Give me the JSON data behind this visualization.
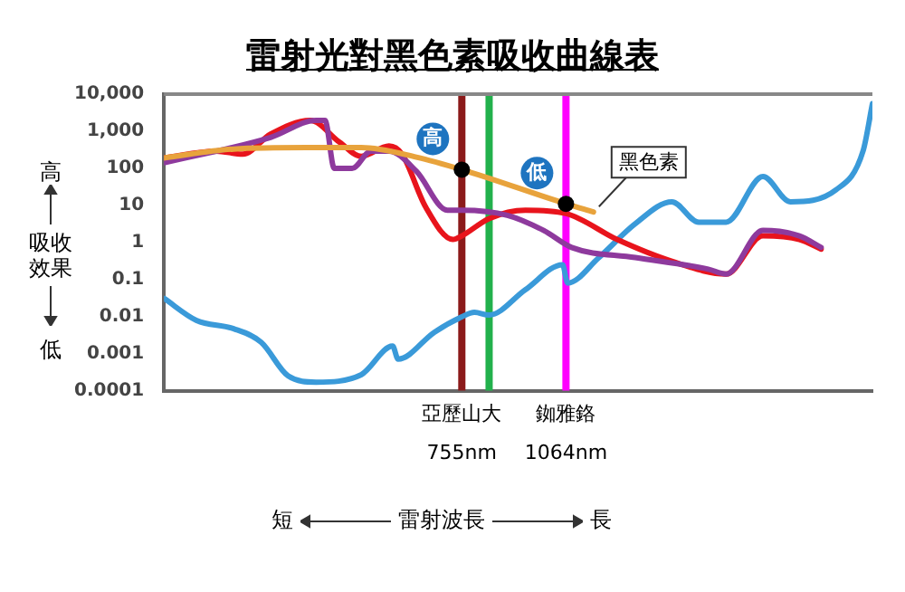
{
  "chart_data": {
    "type": "line",
    "title": "雷射光對黑色素吸收曲線表",
    "xlabel": "雷射波長",
    "ylabel": "吸收效果",
    "annotations": [
      "高",
      "低",
      {
        "text": "高",
        "x": 755,
        "y": 92
      },
      {
        "text": "低",
        "x": 1064,
        "y": 11
      },
      "短",
      "長"
    ],
    "log": "xy",
    "xlim": [
      283,
      2920
    ],
    "xticks": [
      {
        "value": 755,
        "label": "755nm"
      },
      {
        "value": 1064,
        "label": "1064nm"
      }
    ],
    "ylim": [
      0.0001,
      10000
    ],
    "yticks": [
      {
        "value": 0.0001,
        "label": "0.0001"
      },
      {
        "value": 0.001,
        "label": "0.001"
      },
      {
        "value": 0.01,
        "label": "0.01"
      },
      {
        "value": 0.1,
        "label": "0.1"
      },
      {
        "value": 1,
        "label": "1"
      },
      {
        "value": 10,
        "label": "10"
      },
      {
        "value": 100,
        "label": "100"
      },
      {
        "value": 1000,
        "label": "1,000"
      },
      {
        "value": 10000,
        "label": "10,000"
      }
    ],
    "grid": false,
    "legend": false,
    "marker": "none",
    "line_style": "solid",
    "ref_lines": [
      {
        "axis": "x",
        "value": 755,
        "label": "亞歷山大",
        "color": "#8b1a1a"
      },
      {
        "axis": "x",
        "value": 826,
        "color": "#22b14c"
      },
      {
        "axis": "x",
        "value": 1064,
        "label": "銣雅鉻",
        "color": "#ff00ff"
      }
    ],
    "series": [
      {
        "name": "黑色素",
        "color": "#e8a33c",
        "x": [
          283,
          356,
          453,
          542,
          650,
          755,
          1064,
          1165
        ],
        "values": [
          190,
          330,
          360,
          360,
          200,
          92,
          11,
          6.6
        ]
      },
      {
        "color": "#8e3a9d",
        "x": [
          283,
          402,
          467,
          481,
          496,
          526,
          560,
          594,
          650,
          720,
          755,
          877,
          989,
          1084,
          1337,
          1700,
          1803,
          2036,
          2296,
          2466
        ],
        "values": [
          140,
          680,
          1950,
          1950,
          100,
          100,
          290,
          290,
          83,
          7.4,
          7.4,
          5.4,
          2.1,
          0.73,
          0.39,
          0.19,
          0.14,
          2.1,
          1.5,
          0.73
        ]
      },
      {
        "color": "#e8141c",
        "x": [
          283,
          336,
          367,
          402,
          458,
          505,
          542,
          594,
          620,
          670,
          733,
          755,
          826,
          931,
          1064,
          1259,
          1508,
          1803,
          2036,
          2296,
          2466
        ],
        "values": [
          190,
          290,
          240,
          830,
          1950,
          500,
          210,
          400,
          240,
          9.1,
          1.2,
          1.5,
          4.4,
          7.4,
          6,
          1.2,
          0.31,
          0.14,
          1.5,
          1.2,
          0.66
        ]
      },
      {
        "color": "#3a9ad9",
        "x": [
          283,
          315,
          356,
          390,
          426,
          467,
          542,
          601,
          612,
          690,
          755,
          787,
          826,
          931,
          1052,
          1070,
          1186,
          1337,
          1508,
          1648,
          1803,
          2036,
          2228,
          2588,
          2831,
          2920
        ],
        "values": [
          0.031,
          0.0079,
          0.0047,
          0.002,
          0.00025,
          0.00017,
          0.00027,
          0.0016,
          0.00071,
          0.0038,
          0.0098,
          0.013,
          0.011,
          0.053,
          0.25,
          0.08,
          0.39,
          3.2,
          12.5,
          3.5,
          3.5,
          60,
          12.5,
          26,
          290,
          5500
        ]
      }
    ]
  }
}
